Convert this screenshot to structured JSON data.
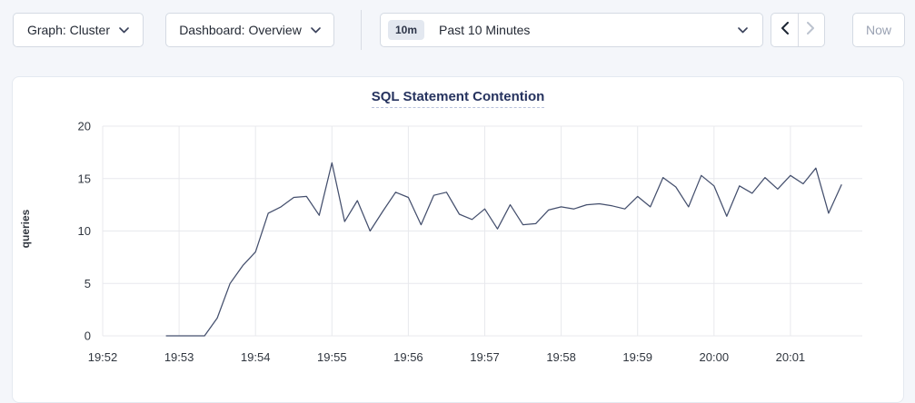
{
  "toolbar": {
    "graph_dropdown": {
      "label": "Graph: Cluster"
    },
    "dashboard_dropdown": {
      "label": "Dashboard: Overview"
    },
    "time_selector": {
      "badge": "10m",
      "label": "Past 10 Minutes"
    },
    "prev_button": {
      "icon": "chevron-left",
      "enabled": true
    },
    "next_button": {
      "icon": "chevron-right",
      "enabled": false
    },
    "now_button": {
      "label": "Now",
      "enabled": false
    }
  },
  "colors": {
    "page_background": "#f4f6fa",
    "panel_background": "#ffffff",
    "button_border": "#d4dae3",
    "title_navy": "#26335f",
    "line": "#444f6d",
    "grid": "#e8e9ed",
    "disabled_text": "#9aa2b3",
    "badge_background": "#e3e8f0"
  },
  "chart_data": {
    "type": "line",
    "title": "SQL Statement Contention",
    "xlabel": "",
    "ylabel": "queries",
    "ylim": [
      0,
      20
    ],
    "y_ticks": [
      0,
      5,
      10,
      15,
      20
    ],
    "x_ticks": [
      "19:52",
      "19:53",
      "19:54",
      "19:55",
      "19:56",
      "19:57",
      "19:58",
      "19:59",
      "20:00",
      "20:01"
    ],
    "grid": true,
    "legend_position": "none",
    "line_color": "#444f6d",
    "grid_color": "#e8e9ed",
    "series": [
      {
        "name": "queries",
        "points": [
          [
            "19:52:50",
            0
          ],
          [
            "19:53:00",
            0
          ],
          [
            "19:53:10",
            0
          ],
          [
            "19:53:20",
            0
          ],
          [
            "19:53:30",
            1.7
          ],
          [
            "19:53:40",
            5.0
          ],
          [
            "19:53:50",
            6.7
          ],
          [
            "19:54:00",
            8.0
          ],
          [
            "19:54:10",
            11.7
          ],
          [
            "19:54:20",
            12.3
          ],
          [
            "19:54:30",
            13.2
          ],
          [
            "19:54:40",
            13.3
          ],
          [
            "19:54:50",
            11.5
          ],
          [
            "19:55:00",
            16.5
          ],
          [
            "19:55:10",
            10.9
          ],
          [
            "19:55:20",
            12.9
          ],
          [
            "19:55:30",
            10.0
          ],
          [
            "19:55:40",
            11.9
          ],
          [
            "19:55:50",
            13.7
          ],
          [
            "19:56:00",
            13.2
          ],
          [
            "19:56:10",
            10.6
          ],
          [
            "19:56:20",
            13.4
          ],
          [
            "19:56:30",
            13.7
          ],
          [
            "19:56:40",
            11.6
          ],
          [
            "19:56:50",
            11.1
          ],
          [
            "19:57:00",
            12.1
          ],
          [
            "19:57:10",
            10.2
          ],
          [
            "19:57:20",
            12.5
          ],
          [
            "19:57:30",
            10.6
          ],
          [
            "19:57:40",
            10.7
          ],
          [
            "19:57:50",
            12.0
          ],
          [
            "19:58:00",
            12.3
          ],
          [
            "19:58:10",
            12.1
          ],
          [
            "19:58:20",
            12.5
          ],
          [
            "19:58:30",
            12.6
          ],
          [
            "19:58:40",
            12.4
          ],
          [
            "19:58:50",
            12.1
          ],
          [
            "19:59:00",
            13.3
          ],
          [
            "19:59:10",
            12.3
          ],
          [
            "19:59:20",
            15.1
          ],
          [
            "19:59:30",
            14.2
          ],
          [
            "19:59:40",
            12.3
          ],
          [
            "19:59:50",
            15.3
          ],
          [
            "20:00:00",
            14.3
          ],
          [
            "20:00:10",
            11.4
          ],
          [
            "20:00:20",
            14.3
          ],
          [
            "20:00:30",
            13.6
          ],
          [
            "20:00:40",
            15.1
          ],
          [
            "20:00:50",
            14.0
          ],
          [
            "20:01:00",
            15.3
          ],
          [
            "20:01:10",
            14.5
          ],
          [
            "20:01:20",
            16.0
          ],
          [
            "20:01:30",
            11.7
          ],
          [
            "20:01:40",
            14.4
          ]
        ]
      }
    ]
  }
}
